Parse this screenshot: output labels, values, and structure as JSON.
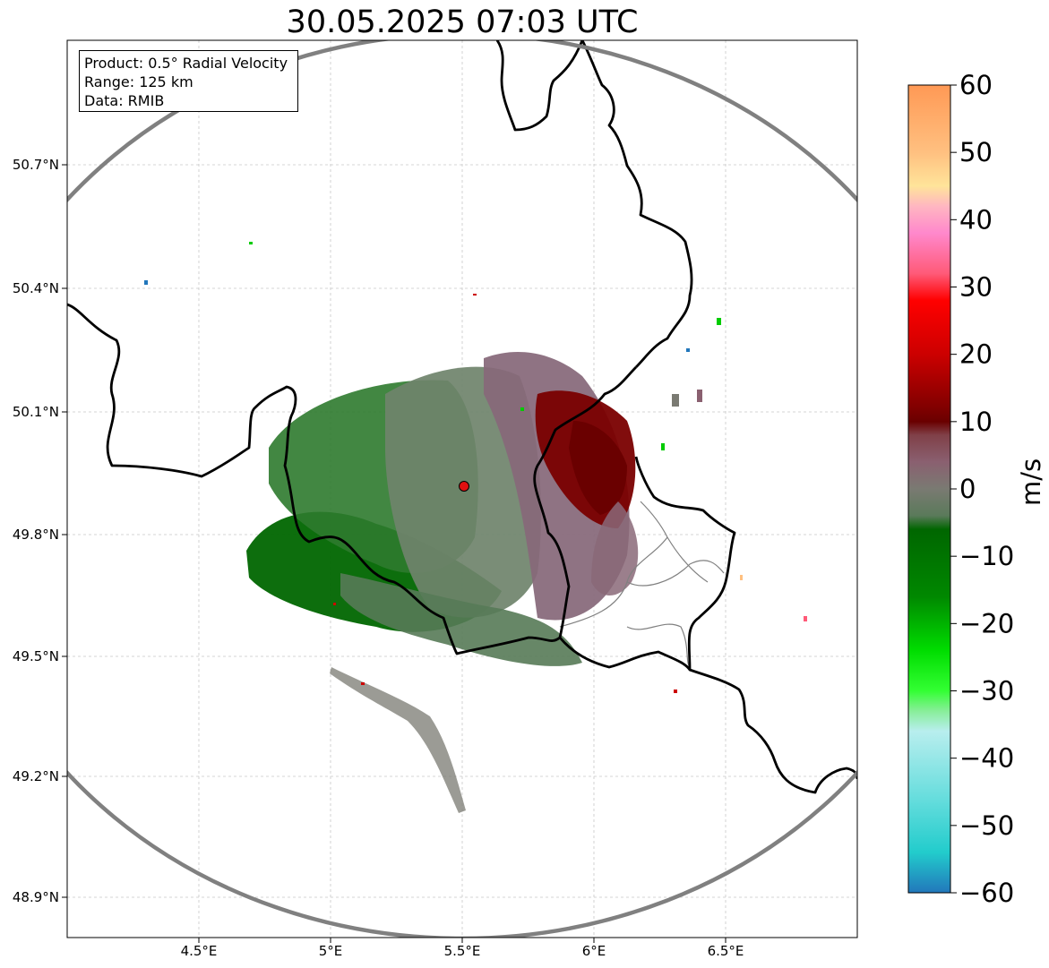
{
  "title": "30.05.2025 07:03 UTC",
  "info_box": {
    "product": "Product: 0.5° Radial Velocity",
    "range": "Range: 125 km",
    "data": "Data: RMIB"
  },
  "axes": {
    "lon_ticks": [
      "4.5°E",
      "5°E",
      "5.5°E",
      "6°E",
      "6.5°E"
    ],
    "lat_ticks": [
      "50.7°N",
      "50.4°N",
      "50.1°N",
      "49.8°N",
      "49.5°N",
      "49.2°N",
      "48.9°N"
    ]
  },
  "radar_site": {
    "lon": 5.505,
    "lat": 49.914,
    "color": "#e01010"
  },
  "range_ring_color": "#808080",
  "colorbar": {
    "unit": "m/s",
    "ticks": [
      "60",
      "50",
      "40",
      "30",
      "20",
      "10",
      "0",
      "−10",
      "−20",
      "−30",
      "−40",
      "−50",
      "−60"
    ],
    "stops": [
      {
        "v": 60,
        "c": "#ff9955"
      },
      {
        "v": 50,
        "c": "#ffc080"
      },
      {
        "v": 45,
        "c": "#ffe49a"
      },
      {
        "v": 42,
        "c": "#ffb6c1"
      },
      {
        "v": 38,
        "c": "#ff88cc"
      },
      {
        "v": 32,
        "c": "#ff5a78"
      },
      {
        "v": 28,
        "c": "#ff0000"
      },
      {
        "v": 20,
        "c": "#cc0000"
      },
      {
        "v": 12,
        "c": "#800000"
      },
      {
        "v": 10,
        "c": "#6a0000"
      },
      {
        "v": 8,
        "c": "#804048"
      },
      {
        "v": 4,
        "c": "#8a6070"
      },
      {
        "v": 0,
        "c": "#7a7a72"
      },
      {
        "v": -4,
        "c": "#5a7a5a"
      },
      {
        "v": -6,
        "c": "#006600"
      },
      {
        "v": -16,
        "c": "#008800"
      },
      {
        "v": -24,
        "c": "#00dd00"
      },
      {
        "v": -30,
        "c": "#33ff33"
      },
      {
        "v": -33,
        "c": "#88ee99"
      },
      {
        "v": -36,
        "c": "#b8eeee"
      },
      {
        "v": -46,
        "c": "#66dddd"
      },
      {
        "v": -54,
        "c": "#22cccc"
      },
      {
        "v": -60,
        "c": "#2277bb"
      }
    ]
  },
  "colors": {
    "country_border": "#000000",
    "province_border": "#808080",
    "grid": "#c8c8c8"
  }
}
